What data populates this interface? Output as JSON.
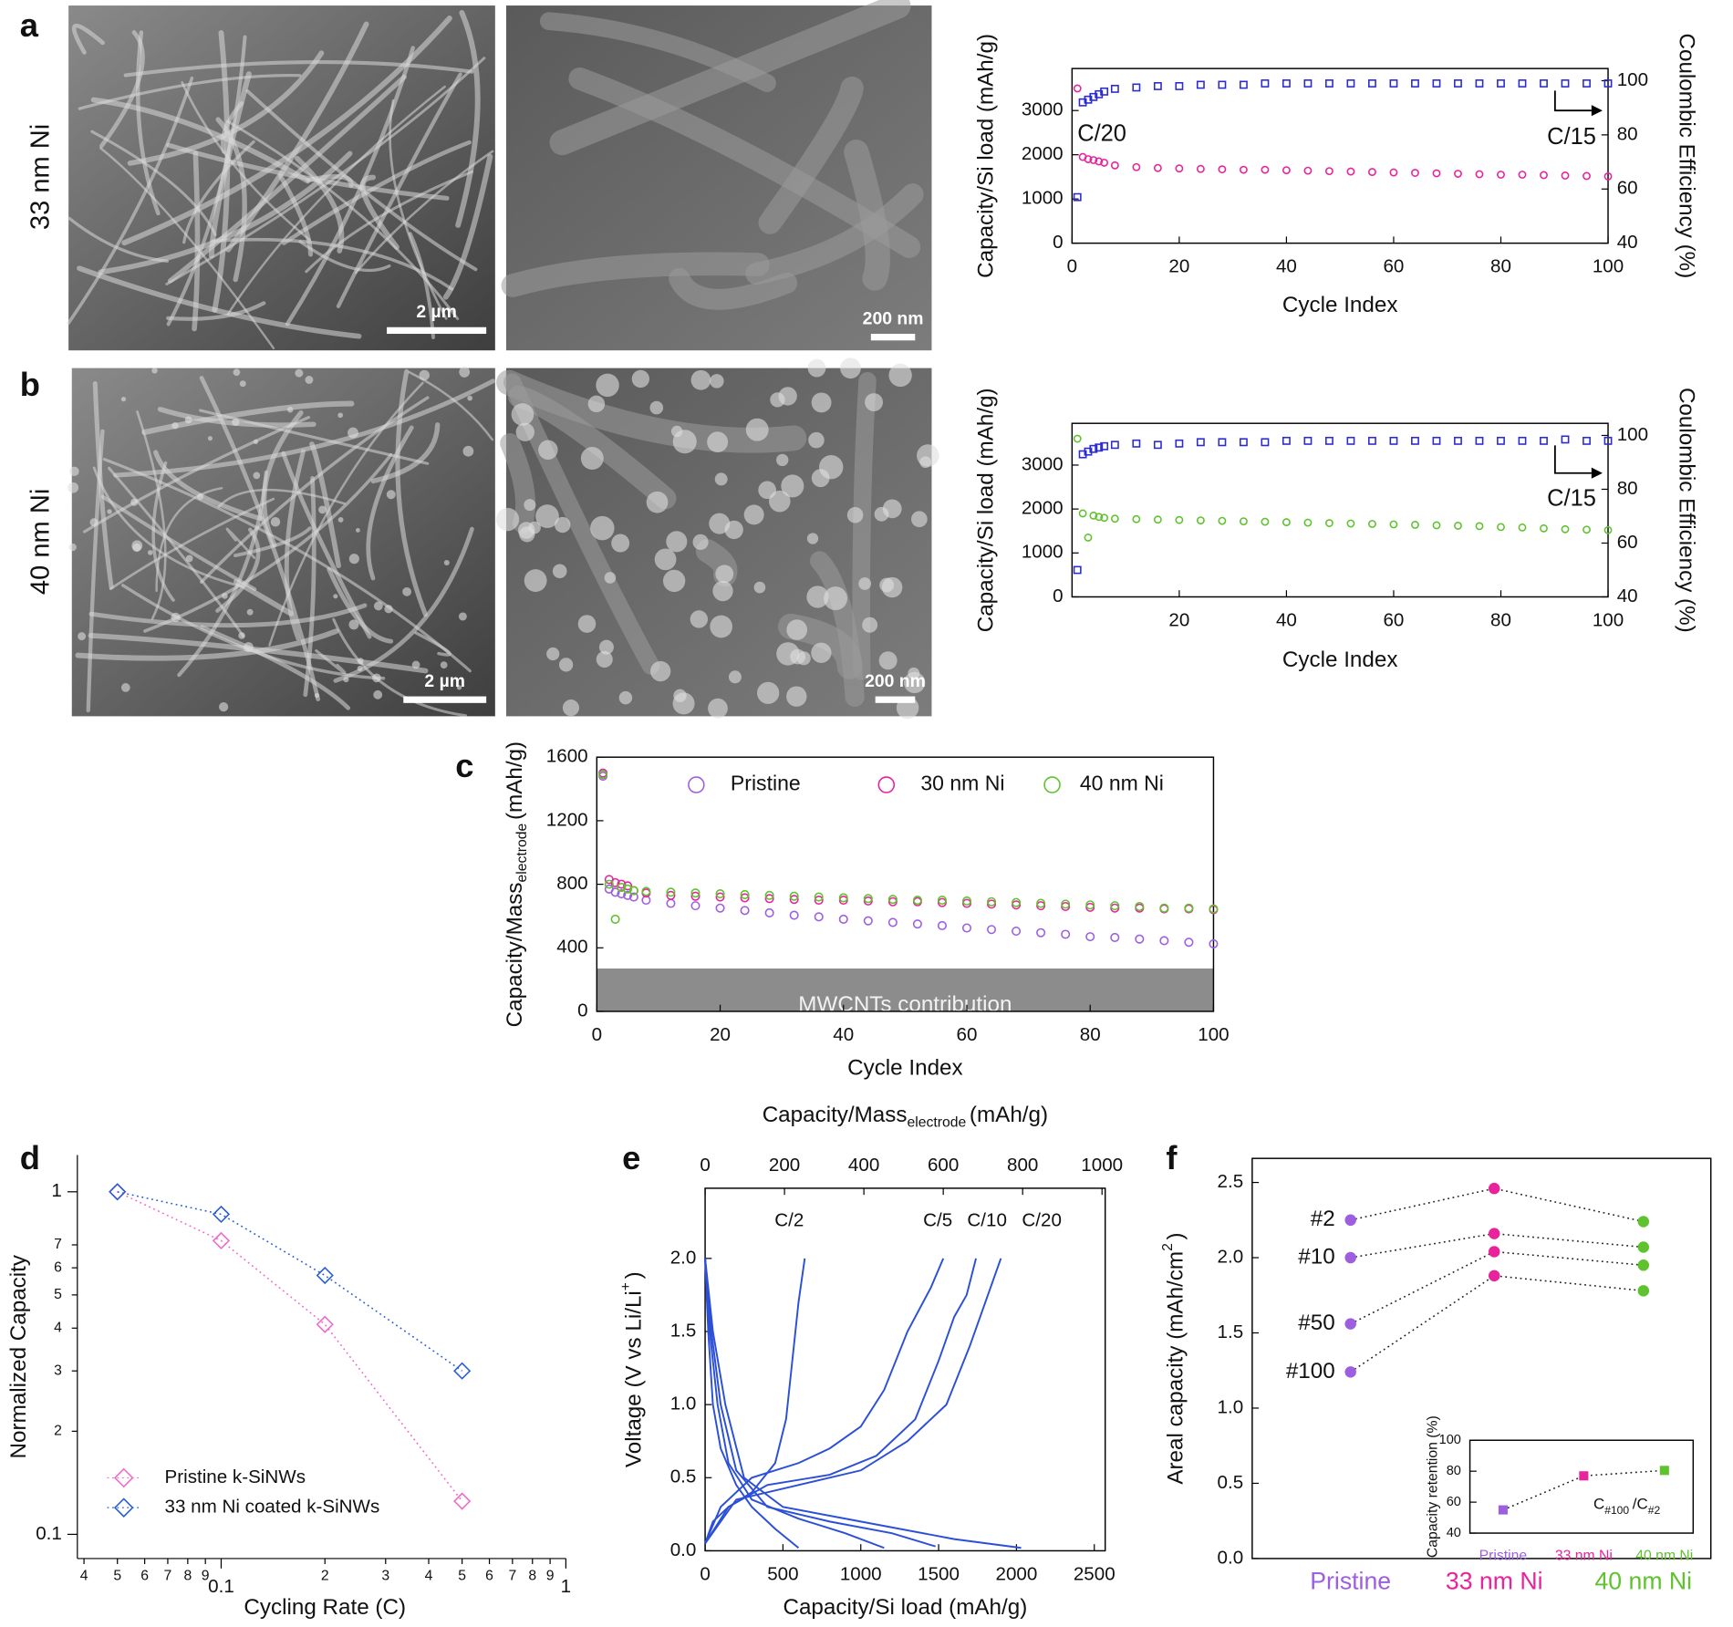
{
  "images": {
    "rows": [
      {
        "panel": "a",
        "label": "33 nm Ni",
        "label_color": "#e8239b",
        "scale_bars": [
          "2 µm",
          "200 nm"
        ]
      },
      {
        "panel": "b",
        "label": "40 nm Ni",
        "label_color": "#5fc22e",
        "scale_bars": [
          "2 µm",
          "200 nm"
        ]
      }
    ]
  },
  "chart_data": [
    {
      "type": "scatter",
      "xlabel": "Cycle Index",
      "ylabel": "Capacity/Si load (mAh/g)",
      "y2label": "Coulombic Efficiency (%)",
      "x": [
        1,
        2,
        3,
        4,
        5,
        6,
        8,
        12,
        16,
        20,
        24,
        28,
        32,
        36,
        40,
        44,
        48,
        52,
        56,
        60,
        64,
        68,
        72,
        76,
        80,
        84,
        88,
        92,
        96,
        100
      ],
      "xlim": [
        0,
        100
      ],
      "xticks": [
        0,
        20,
        40,
        60,
        80,
        100
      ],
      "ylim": [
        0,
        3950
      ],
      "yticks": [
        0,
        1000,
        2000,
        3000
      ],
      "y2lim": [
        40,
        104.5
      ],
      "y2ticks": [
        40,
        60,
        80,
        100
      ],
      "series": [
        {
          "color": "#2b2bd1",
          "marker": "open square",
          "axis": "y2",
          "values": [
            57,
            92,
            93,
            94,
            95,
            96,
            97,
            97.5,
            98,
            98,
            98.5,
            98.5,
            98.5,
            99,
            99,
            99,
            99,
            99,
            99,
            99,
            99,
            99,
            99,
            99,
            99,
            99,
            99,
            99,
            99,
            99
          ]
        },
        {
          "color": "#e8239b",
          "marker": "open circle",
          "values": [
            3500,
            1950,
            1900,
            1880,
            1850,
            1820,
            1760,
            1720,
            1700,
            1690,
            1680,
            1670,
            1660,
            1660,
            1650,
            1640,
            1630,
            1620,
            1610,
            1600,
            1590,
            1580,
            1570,
            1560,
            1550,
            1550,
            1540,
            1530,
            1520,
            1510
          ]
        }
      ],
      "annotations": [
        "C/20",
        "C/15"
      ]
    },
    {
      "type": "scatter",
      "xlabel": "Cycle Index",
      "ylabel": "Capacity/Si load (mAh/g)",
      "y2label": "Coulombic Efficiency (%)",
      "x": [
        1,
        2,
        3,
        4,
        5,
        6,
        8,
        12,
        16,
        20,
        24,
        28,
        32,
        36,
        40,
        44,
        48,
        52,
        56,
        60,
        64,
        68,
        72,
        76,
        80,
        84,
        88,
        92,
        96,
        100
      ],
      "xlim": [
        0,
        100
      ],
      "xticks": [
        20,
        40,
        60,
        80,
        100
      ],
      "ylim": [
        0,
        3950
      ],
      "yticks": [
        0,
        1000,
        2000,
        3000
      ],
      "y2lim": [
        40,
        104.5
      ],
      "y2ticks": [
        40,
        60,
        80,
        100
      ],
      "series": [
        {
          "color": "#2b2bd1",
          "marker": "open square",
          "axis": "y2",
          "values": [
            50,
            93,
            94,
            95,
            95.5,
            96,
            96.5,
            97,
            96.5,
            97,
            97.5,
            97.5,
            97.5,
            97.5,
            98,
            98,
            98,
            98,
            98,
            98,
            98,
            98,
            98,
            98,
            98,
            98,
            98,
            98.5,
            98,
            98
          ]
        },
        {
          "color": "#5fc22e",
          "marker": "open circle",
          "values": [
            3600,
            1900,
            1350,
            1850,
            1820,
            1800,
            1780,
            1770,
            1760,
            1750,
            1740,
            1730,
            1720,
            1710,
            1700,
            1690,
            1680,
            1670,
            1660,
            1650,
            1640,
            1630,
            1620,
            1610,
            1590,
            1580,
            1560,
            1540,
            1530,
            1520
          ]
        }
      ],
      "annotations": [
        "C/15"
      ]
    },
    {
      "type": "scatter",
      "panel": "c",
      "xlabel": "Cycle Index",
      "ylabel": [
        "Capacity/Mass",
        "electrode",
        "(mAh/g)"
      ],
      "x": [
        1,
        2,
        3,
        4,
        5,
        6,
        8,
        12,
        16,
        20,
        24,
        28,
        32,
        36,
        40,
        44,
        48,
        52,
        56,
        60,
        64,
        68,
        72,
        76,
        80,
        84,
        88,
        92,
        96,
        100
      ],
      "xlim": [
        0,
        100
      ],
      "xticks": [
        0,
        20,
        40,
        60,
        80,
        100
      ],
      "ylim": [
        0,
        1600
      ],
      "yticks": [
        0,
        400,
        800,
        1200,
        1600
      ],
      "shaded_region": {
        "label": "MWCNTs contribution",
        "range": [
          0,
          270
        ],
        "color": "#8c8c8c"
      },
      "legend": "top",
      "series": [
        {
          "name": "Pristine",
          "color": "#9d5fe0",
          "marker": "open circle",
          "values": [
            1480,
            770,
            750,
            740,
            730,
            720,
            700,
            680,
            665,
            650,
            635,
            620,
            605,
            595,
            580,
            570,
            560,
            550,
            540,
            525,
            515,
            505,
            495,
            485,
            470,
            465,
            455,
            445,
            435,
            425
          ]
        },
        {
          "name": "30 nm Ni",
          "color": "#e8239b",
          "marker": "open circle",
          "values": [
            1500,
            830,
            810,
            800,
            790,
            760,
            745,
            730,
            725,
            720,
            715,
            710,
            705,
            700,
            700,
            695,
            690,
            690,
            685,
            680,
            675,
            670,
            665,
            660,
            655,
            650,
            650,
            645,
            645,
            640
          ]
        },
        {
          "name": "40 nm Ni",
          "color": "#5fc22e",
          "marker": "open circle",
          "values": [
            1490,
            800,
            580,
            780,
            770,
            760,
            755,
            750,
            745,
            740,
            735,
            730,
            725,
            720,
            715,
            710,
            705,
            700,
            700,
            695,
            690,
            685,
            680,
            675,
            670,
            665,
            660,
            650,
            650,
            645
          ]
        }
      ]
    },
    {
      "type": "line",
      "panel": "d",
      "xlabel": "Cycling Rate (C)",
      "ylabel": "Normalized Capacity",
      "x": [
        0.05,
        0.1,
        0.2,
        0.5
      ],
      "xlog": true,
      "ylog": true,
      "xlim": [
        0.04,
        1
      ],
      "ylim": [
        0.085,
        1.28
      ],
      "xticks": [
        {
          "value": 0.04,
          "label": "4"
        },
        {
          "value": 0.05,
          "label": "5"
        },
        {
          "value": 0.06,
          "label": "6"
        },
        {
          "value": 0.07,
          "label": "7"
        },
        {
          "value": 0.08,
          "label": "8"
        },
        {
          "value": 0.09,
          "label": "9"
        },
        0.1,
        {
          "value": 0.2,
          "label": "2"
        },
        {
          "value": 0.3,
          "label": "3"
        },
        {
          "value": 0.4,
          "label": "4"
        },
        {
          "value": 0.5,
          "label": "5"
        },
        {
          "value": 0.6,
          "label": "6"
        },
        {
          "value": 0.7,
          "label": "7"
        },
        {
          "value": 0.8,
          "label": "8"
        },
        {
          "value": 0.9,
          "label": "9"
        },
        1
      ],
      "yticks": [
        1,
        {
          "value": 0.7,
          "label": "7"
        },
        {
          "value": 0.6,
          "label": "6"
        },
        {
          "value": 0.5,
          "label": "5"
        },
        {
          "value": 0.4,
          "label": "4"
        },
        {
          "value": 0.3,
          "label": "3"
        },
        {
          "value": 0.2,
          "label": "2"
        },
        0.1
      ],
      "legend": "lower left",
      "series": [
        {
          "name": "Pristine k-SiNWs",
          "color": "#f06ac8",
          "marker": "open diamond",
          "line_style": "dotted",
          "values": [
            1,
            0.72,
            0.41,
            0.125
          ]
        },
        {
          "name": "33 nm Ni coated k-SiNWs",
          "color": "#2a5bd7",
          "marker": "open diamond",
          "line_style": "dotted",
          "values": [
            1,
            0.86,
            0.57,
            0.3
          ]
        }
      ]
    },
    {
      "type": "line",
      "panel": "e",
      "xlabel": "Capacity/Si load (mAh/g)",
      "x2label": [
        "Capacity/Mass",
        "electrode",
        "(mAh/g)"
      ],
      "ylabel": [
        "Voltage  (V vs Li/Li",
        "+",
        ")"
      ],
      "xlim": [
        0,
        2570
      ],
      "xticks": [
        0,
        500,
        1000,
        1500,
        2000,
        2500
      ],
      "x2lim": [
        0,
        1008
      ],
      "x2ticks": [
        0,
        200,
        400,
        600,
        800,
        1000
      ],
      "ylim": [
        0,
        2.48
      ],
      "yticks": [
        {
          "value": 0,
          "label": "0.0"
        },
        0.5,
        {
          "value": 1,
          "label": "1.0"
        },
        1.5,
        {
          "value": 2,
          "label": "2.0"
        }
      ],
      "series": [
        {
          "name": "C/2",
          "color": "#2c4fd8",
          "x": [
            0,
            20,
            50,
            100,
            200,
            300,
            450,
            600,
            null,
            0,
            50,
            150,
            300,
            450,
            520,
            560,
            600,
            640
          ],
          "values": [
            2.0,
            1.5,
            1.0,
            0.7,
            0.45,
            0.3,
            0.15,
            0.02,
            null,
            0.05,
            0.2,
            0.3,
            0.4,
            0.6,
            0.9,
            1.3,
            1.7,
            2.0
          ]
        },
        {
          "name": "C/5",
          "color": "#2c4fd8",
          "x": [
            0,
            30,
            80,
            150,
            300,
            600,
            900,
            1150,
            null,
            0,
            100,
            300,
            600,
            800,
            1000,
            1150,
            1300,
            1450,
            1530
          ],
          "values": [
            2.0,
            1.5,
            1.0,
            0.6,
            0.35,
            0.22,
            0.12,
            0.02,
            null,
            0.05,
            0.3,
            0.5,
            0.6,
            0.7,
            0.85,
            1.1,
            1.5,
            1.8,
            2.0
          ]
        },
        {
          "name": "C/10",
          "color": "#2c4fd8",
          "x": [
            0,
            40,
            100,
            200,
            400,
            800,
            1200,
            1480,
            null,
            0,
            150,
            400,
            800,
            1100,
            1350,
            1500,
            1600,
            1680,
            1740
          ],
          "values": [
            2.0,
            1.5,
            1.0,
            0.55,
            0.3,
            0.2,
            0.12,
            0.03,
            null,
            0.05,
            0.3,
            0.45,
            0.52,
            0.65,
            0.9,
            1.3,
            1.6,
            1.75,
            2.0
          ]
        },
        {
          "name": "C/20",
          "color": "#2c4fd8",
          "x": [
            0,
            50,
            130,
            250,
            500,
            1000,
            1600,
            2030,
            null,
            0,
            200,
            600,
            1000,
            1300,
            1550,
            1700,
            1800,
            1900
          ],
          "values": [
            2.0,
            1.5,
            1.0,
            0.5,
            0.3,
            0.2,
            0.08,
            0.02,
            null,
            0.05,
            0.35,
            0.45,
            0.55,
            0.75,
            1.0,
            1.4,
            1.7,
            2.0
          ]
        }
      ]
    },
    {
      "type": "dot",
      "panel": "f",
      "ylabel": [
        "Areal capacity (mAh/cm",
        "2",
        ")"
      ],
      "categories": [
        "Pristine",
        "33 nm Ni",
        "40 nm Ni"
      ],
      "category_colors": [
        "#9d5fe0",
        "#e8239b",
        "#5fc22e"
      ],
      "ylim": [
        0,
        2.66
      ],
      "yticks": [
        {
          "value": 0,
          "label": "0.0"
        },
        0.5,
        {
          "value": 1,
          "label": "1.0"
        },
        1.5,
        {
          "value": 2,
          "label": "2.0"
        },
        2.5
      ],
      "line_color": "#222222",
      "line_style": "dotted",
      "series": [
        {
          "name": "#2",
          "marker": "filled circle",
          "values": [
            2.25,
            2.46,
            2.24
          ]
        },
        {
          "name": "#10",
          "marker": "filled circle",
          "values": [
            2.0,
            2.16,
            2.07
          ]
        },
        {
          "name": "#50",
          "marker": "filled circle",
          "values": [
            1.56,
            2.04,
            1.95
          ]
        },
        {
          "name": "#100",
          "marker": "filled circle",
          "values": [
            1.24,
            1.88,
            1.78
          ]
        }
      ]
    },
    {
      "type": "dot",
      "ylabel": "Capacity retention (%)",
      "categories": [
        "Pristine",
        "33 nm Ni",
        "40 nm Ni"
      ],
      "category_colors": [
        "#9d5fe0",
        "#e8239b",
        "#5fc22e"
      ],
      "ylim": [
        40,
        100
      ],
      "yticks": [
        40,
        60,
        80,
        100
      ],
      "line_color": "#222222",
      "line_style": "dotted",
      "series": [
        {
          "marker": "filled square",
          "values": [
            55,
            77,
            80.5
          ]
        }
      ],
      "annotations": [
        [
          "C",
          "#100",
          "/C",
          "#2"
        ]
      ]
    }
  ]
}
